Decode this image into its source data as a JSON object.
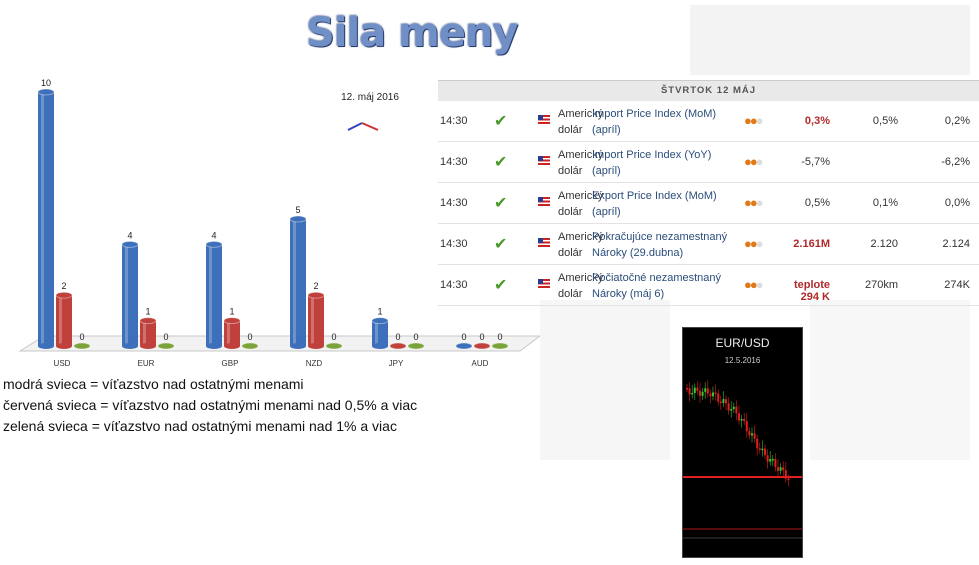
{
  "title": "Sila meny",
  "chart_data": {
    "type": "bar",
    "categories": [
      "USD",
      "EUR",
      "GBP",
      "NZD",
      "JPY",
      "AUD"
    ],
    "series": [
      {
        "values": [
          10,
          4,
          4,
          5,
          1,
          0
        ],
        "color": "#3d6fba"
      },
      {
        "values": [
          2,
          1,
          1,
          2,
          0,
          0
        ],
        "color": "#c0403c"
      },
      {
        "values": [
          0,
          0,
          0,
          0,
          0,
          0
        ],
        "color": "#7aa33a"
      }
    ],
    "ylim": [
      0,
      10
    ],
    "annotation": "12. máj 2016"
  },
  "legend_lines": [
    "modrá svieca = víťazstvo nad ostatnými menami",
    "červená svieca = víťazstvo nad ostatnými menami nad 0,5% a viac",
    "zelená svieca = víťazstvo nad ostatnými menami nad 1% a viac"
  ],
  "calendar": {
    "day_header": "ŠTVRTOK 12 MÁJ",
    "rows": [
      {
        "time": "14:30",
        "currency": "Americký dolár",
        "event": "Import Price Index (MoM) (apríl)",
        "actual": "0,3%",
        "actual_red": true,
        "forecast": "0,5%",
        "previous": "0,2%"
      },
      {
        "time": "14:30",
        "currency": "Americký dolár",
        "event": "Import Price Index (YoY) (apríl)",
        "actual": "-5,7%",
        "actual_red": false,
        "forecast": "",
        "previous": "-6,2%"
      },
      {
        "time": "14:30",
        "currency": "Americký dolár",
        "event": "Export Price Index (MoM) (apríl)",
        "actual": "0,5%",
        "actual_red": false,
        "forecast": "0,1%",
        "previous": "0,0%"
      },
      {
        "time": "14:30",
        "currency": "Americký dolár",
        "event": "Pokračujúce nezamestnaný Nároky (29.dubna)",
        "actual": "2.161M",
        "actual_red": true,
        "forecast": "2.120",
        "previous": "2.124"
      },
      {
        "time": "14:30",
        "currency": "Americký dolár",
        "event": "Počiatočné nezamestnaný Nároky (máj 6)",
        "actual": "teplote 294 K",
        "actual_red": true,
        "forecast": "270km",
        "previous": "274K"
      }
    ]
  },
  "candle_chart": {
    "pair": "EUR/USD",
    "date": "12.5.2016"
  }
}
